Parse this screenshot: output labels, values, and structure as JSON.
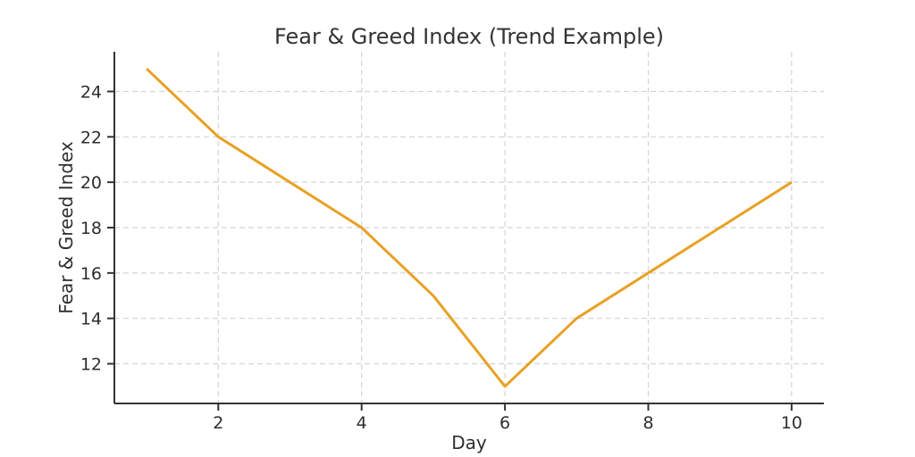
{
  "chart_data": {
    "type": "line",
    "title": "Fear & Greed Index (Trend Example)",
    "xlabel": "Day",
    "ylabel": "Fear & Greed Index",
    "x": [
      1,
      2,
      3,
      4,
      5,
      6,
      7,
      8,
      9,
      10
    ],
    "series": [
      {
        "name": "Fear & Greed Index",
        "values": [
          25,
          22,
          20,
          18,
          15,
          11,
          14,
          16,
          18,
          20
        ]
      }
    ],
    "xticks": [
      2,
      4,
      6,
      8,
      10
    ],
    "yticks": [
      12,
      14,
      16,
      18,
      20,
      22,
      24
    ],
    "xlim": [
      0.55,
      10.45
    ],
    "ylim": [
      10.25,
      25.75
    ],
    "grid": "dashed",
    "legend": "none",
    "colors": {
      "line": "#E8A125",
      "grid": "#d4d4d4",
      "axis": "#333333",
      "text": "#2e2e2e",
      "background": "#ffffff"
    }
  }
}
